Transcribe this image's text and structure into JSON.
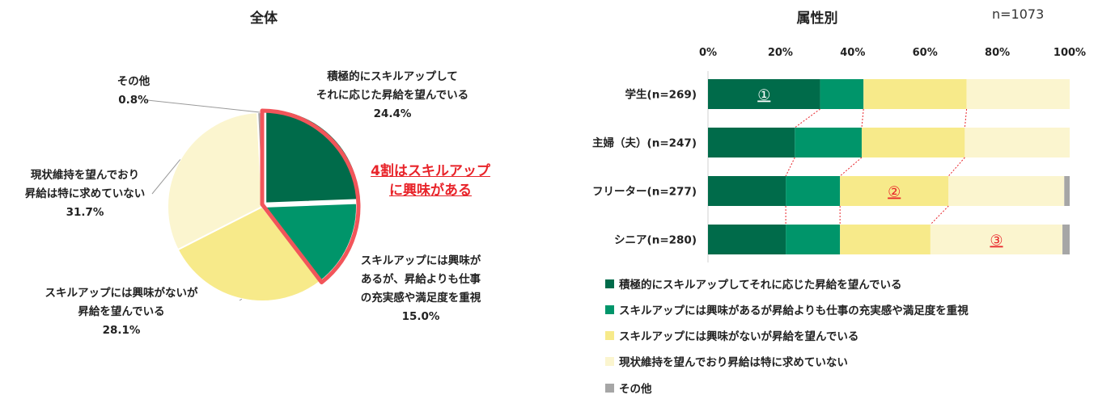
{
  "chart_data": [
    {
      "type": "pie",
      "title": "全体",
      "categories": [
        "積極的にスキルアップしてそれに応じた昇給を望んでいる",
        "スキルアップには興味があるが、昇給よりも仕事の充実感や満足度を重視",
        "スキルアップには興味がないが昇給を望んでいる",
        "現状維持を望んでおり昇給は特に求めていない",
        "その他"
      ],
      "values": [
        24.4,
        15.0,
        28.1,
        31.7,
        0.8
      ],
      "colors": [
        "#006b4a",
        "#00956a",
        "#f7ea8a",
        "#fbf5cf",
        "#a6a6a6"
      ],
      "labels": {
        "aggressive": {
          "line1": "積極的にスキルアップして",
          "line2": "それに応じた昇給を望んでいる",
          "pct": "24.4%"
        },
        "interested": {
          "line1": "スキルアップには興味が",
          "line2": "あるが、昇給よりも仕事",
          "line3": "の充実感や満足度を重視",
          "pct": "15.0%"
        },
        "no_interest": {
          "line1": "スキルアップには興味がないが",
          "line2": "昇給を望んでいる",
          "pct": "28.1%"
        },
        "status_quo": {
          "line1": "現状維持を望んでおり",
          "line2": "昇給は特に求めていない",
          "pct": "31.7%"
        },
        "other": {
          "line1": "その他",
          "pct": "0.8%"
        }
      },
      "callout": {
        "line1": "4割はスキルアップ",
        "line2": "に興味がある"
      }
    },
    {
      "type": "bar",
      "orientation": "horizontal",
      "stacked": true,
      "title": "属性別",
      "note": "n=1073",
      "categories": [
        "学生(n=269)",
        "主婦（夫）(n=247)",
        "フリーター(n=277)",
        "シニア(n=280)"
      ],
      "xlim": [
        0,
        100
      ],
      "xticks": [
        "0%",
        "20%",
        "40%",
        "60%",
        "80%",
        "100%"
      ],
      "series": [
        {
          "name": "積極的にスキルアップしてそれに応じた昇給を望んでいる",
          "color": "#006b4a",
          "values": [
            31,
            24,
            21.5,
            21.5
          ]
        },
        {
          "name": "スキルアップには興味があるが昇給よりも仕事の充実感や満足度を重視",
          "color": "#00956a",
          "values": [
            12,
            18.5,
            15,
            15
          ]
        },
        {
          "name": "スキルアップには興味がないが昇給を望んでいる",
          "color": "#f7ea8a",
          "values": [
            28.5,
            28.5,
            30,
            25
          ]
        },
        {
          "name": "現状維持を望んでおり昇給は特に求めていない",
          "color": "#fbf5cf",
          "values": [
            28.5,
            29,
            32,
            36.5
          ]
        },
        {
          "name": "その他",
          "color": "#a6a6a6",
          "values": [
            0,
            0,
            1.5,
            2
          ]
        }
      ],
      "annotations": [
        {
          "text": "①",
          "row": 0,
          "color": "#ffffff"
        },
        {
          "text": "②",
          "row": 2,
          "color": "#e8242a"
        },
        {
          "text": "③",
          "row": 3,
          "color": "#e8242a"
        }
      ],
      "legend_placement": "bottom"
    }
  ]
}
